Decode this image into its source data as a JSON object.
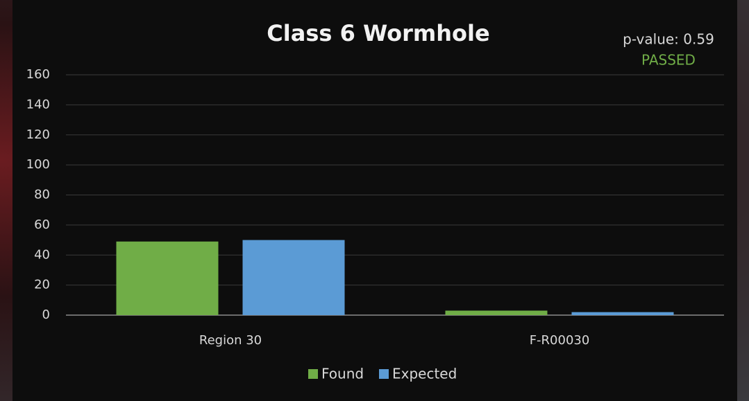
{
  "chart_data": {
    "type": "bar",
    "title": "Class 6 Wormhole",
    "annotations": [
      "p-value: 0.59",
      "PASSED"
    ],
    "categories": [
      "Region 30",
      "F-R00030"
    ],
    "series": [
      {
        "name": "Found",
        "color": "#70ad47",
        "values": [
          49,
          3
        ]
      },
      {
        "name": "Expected",
        "color": "#5b9bd5",
        "values": [
          50,
          2
        ]
      }
    ],
    "ylim": [
      0,
      160
    ],
    "yticks": [
      0,
      20,
      40,
      60,
      80,
      100,
      120,
      140,
      160
    ],
    "grid": true
  }
}
